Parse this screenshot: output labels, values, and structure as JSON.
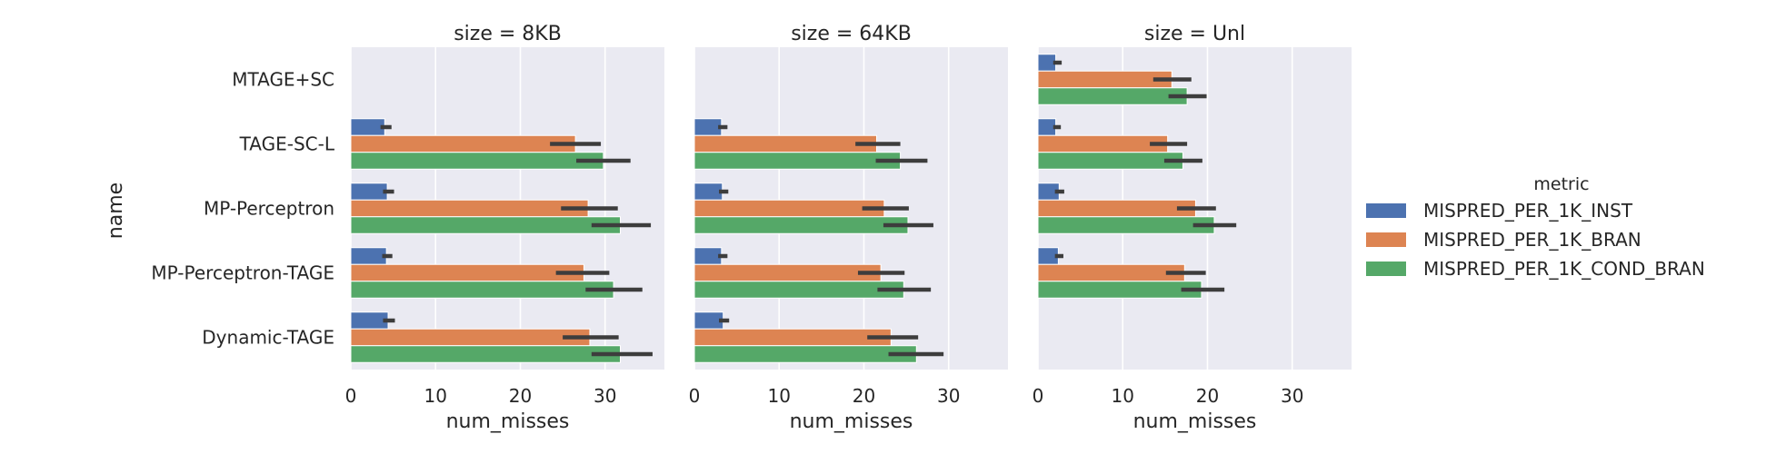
{
  "chart_data": {
    "type": "bar",
    "orientation": "horizontal",
    "facet_label": "size",
    "panels": [
      {
        "title": "size = 8KB",
        "size": "8KB"
      },
      {
        "title": "size = 64KB",
        "size": "64KB"
      },
      {
        "title": "size = Unl",
        "size": "Unl"
      }
    ],
    "categories": [
      "MTAGE+SC",
      "TAGE-SC-L",
      "MP-Perceptron",
      "MP-Perceptron-TAGE",
      "Dynamic-TAGE"
    ],
    "xlabel": "num_misses",
    "ylabel": "name",
    "xlim": [
      0,
      37
    ],
    "xticks": [
      0,
      10,
      20,
      30
    ],
    "grid": true,
    "legend": {
      "title": "metric",
      "placement": "right",
      "entries": [
        "MISPRED_PER_1K_INST",
        "MISPRED_PER_1K_BRAN",
        "MISPRED_PER_1K_COND_BRAN"
      ]
    },
    "series": [
      {
        "name": "MISPRED_PER_1K_INST",
        "color": "#4c72b0",
        "panels": [
          {
            "values": [
              null,
              4.0,
              4.3,
              4.2,
              4.4
            ],
            "errors": [
              null,
              [
                3.5,
                4.8
              ],
              [
                3.8,
                5.1
              ],
              [
                3.7,
                4.9
              ],
              [
                3.8,
                5.2
              ]
            ]
          },
          {
            "values": [
              null,
              3.2,
              3.3,
              3.2,
              3.4
            ],
            "errors": [
              null,
              [
                2.8,
                3.9
              ],
              [
                2.9,
                4.0
              ],
              [
                2.8,
                3.9
              ],
              [
                2.9,
                4.1
              ]
            ]
          },
          {
            "values": [
              2.1,
              2.1,
              2.5,
              2.4,
              null
            ],
            "errors": [
              [
                1.8,
                2.8
              ],
              [
                1.8,
                2.7
              ],
              [
                2.0,
                3.1
              ],
              [
                2.0,
                3.0
              ],
              null
            ]
          }
        ]
      },
      {
        "name": "MISPRED_PER_1K_BRAN",
        "color": "#dd8452",
        "panels": [
          {
            "values": [
              null,
              26.5,
              28.0,
              27.5,
              28.2
            ],
            "errors": [
              null,
              [
                23.5,
                29.5
              ],
              [
                24.8,
                31.5
              ],
              [
                24.2,
                30.5
              ],
              [
                25.0,
                31.6
              ]
            ]
          },
          {
            "values": [
              null,
              21.5,
              22.4,
              22.0,
              23.2
            ],
            "errors": [
              null,
              [
                19.0,
                24.3
              ],
              [
                19.8,
                25.3
              ],
              [
                19.3,
                24.8
              ],
              [
                20.4,
                26.4
              ]
            ]
          },
          {
            "values": [
              15.8,
              15.3,
              18.6,
              17.3,
              null
            ],
            "errors": [
              [
                13.6,
                18.1
              ],
              [
                13.2,
                17.6
              ],
              [
                16.4,
                21.0
              ],
              [
                15.1,
                19.8
              ],
              null
            ]
          }
        ]
      },
      {
        "name": "MISPRED_PER_1K_COND_BRAN",
        "color": "#55a868",
        "panels": [
          {
            "values": [
              null,
              29.8,
              31.8,
              31.0,
              31.8
            ],
            "errors": [
              null,
              [
                26.6,
                33.0
              ],
              [
                28.4,
                35.4
              ],
              [
                27.7,
                34.4
              ],
              [
                28.4,
                35.6
              ]
            ]
          },
          {
            "values": [
              null,
              24.3,
              25.2,
              24.7,
              26.2
            ],
            "errors": [
              null,
              [
                21.4,
                27.5
              ],
              [
                22.3,
                28.2
              ],
              [
                21.6,
                27.9
              ],
              [
                22.9,
                29.4
              ]
            ]
          },
          {
            "values": [
              17.6,
              17.1,
              20.8,
              19.3,
              null
            ],
            "errors": [
              [
                15.4,
                19.9
              ],
              [
                14.9,
                19.4
              ],
              [
                18.3,
                23.4
              ],
              [
                16.9,
                22.0
              ],
              null
            ]
          }
        ]
      }
    ]
  }
}
